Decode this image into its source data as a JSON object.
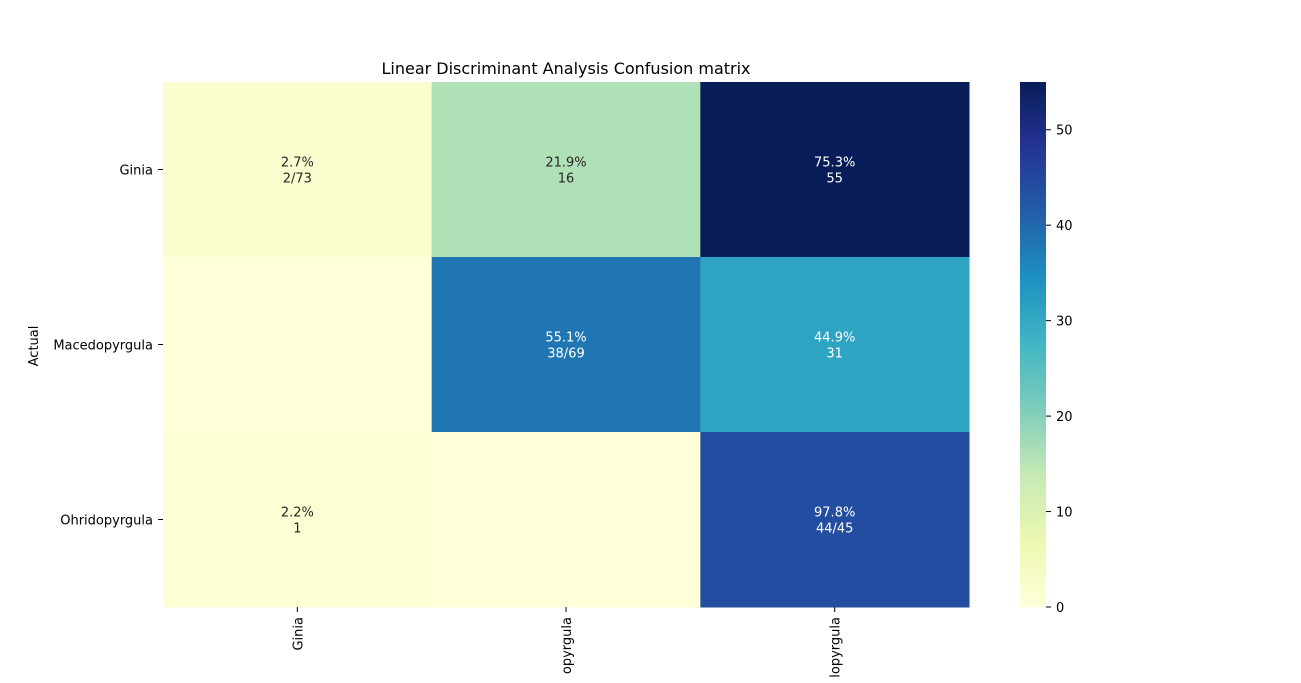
{
  "chart_data": {
    "type": "heatmap",
    "title": "Linear Discriminant Analysis Confusion matrix",
    "ylabel": "Actual",
    "xlabel": "",
    "row_labels": [
      "Ginia",
      "Macedopyrgula",
      "Ohridopyrgula"
    ],
    "col_labels": [
      "Ginia",
      "Macedopyrgula",
      "Ohridopyrgula"
    ],
    "x_tick_labels_visible": [
      "Ginia",
      "opyrgula",
      "lopyrgula"
    ],
    "values": [
      [
        2,
        16,
        55
      ],
      [
        0,
        38,
        31
      ],
      [
        1,
        0,
        44
      ]
    ],
    "annotations": [
      [
        [
          "2.7%",
          "2/73"
        ],
        [
          "21.9%",
          "16"
        ],
        [
          "75.3%",
          "55"
        ]
      ],
      [
        [
          "",
          ""
        ],
        [
          "55.1%",
          "38/69"
        ],
        [
          "44.9%",
          "31"
        ]
      ],
      [
        [
          "2.2%",
          "1"
        ],
        [
          "",
          ""
        ],
        [
          "97.8%",
          "44/45"
        ]
      ]
    ],
    "colormap": "YlGnBu",
    "vmin": 0,
    "vmax": 55,
    "colorbar_ticks": [
      0,
      10,
      20,
      30,
      40,
      50
    ],
    "grid": false
  }
}
